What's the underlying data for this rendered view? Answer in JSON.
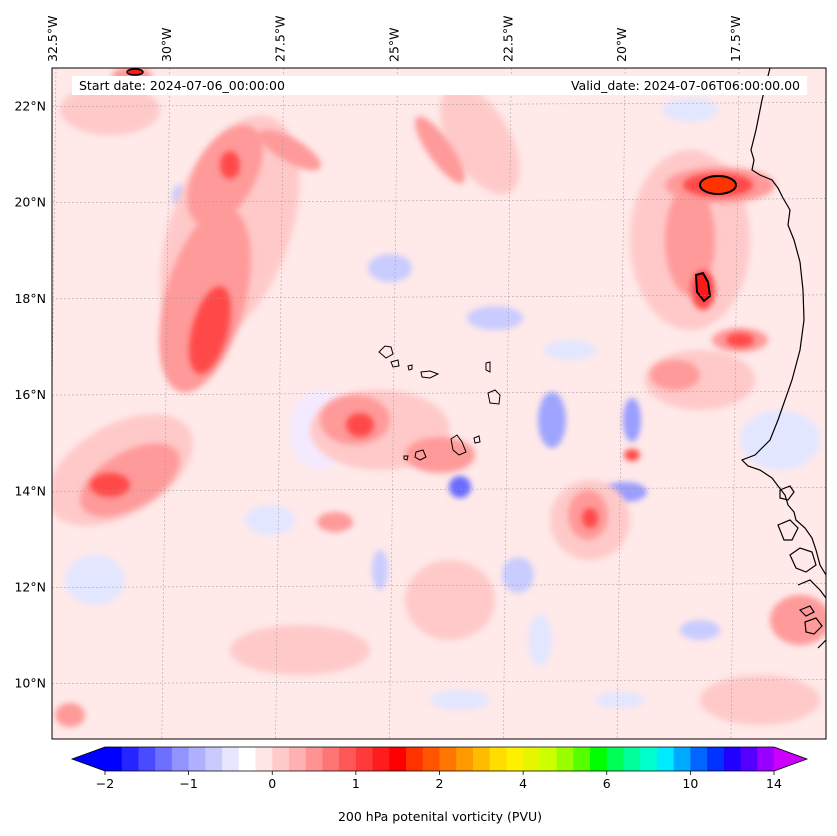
{
  "map": {
    "start_date": "Start date: 2024-07-06_00:00:00",
    "valid_date": "Valid_date: 2024-07-06T06:00:00.00",
    "extent": {
      "lon_min": -32.5,
      "lon_max": -15.5,
      "lat_min": 8.85,
      "lat_max": 22.8
    },
    "lon_labels": [
      {
        "lon": -32.5,
        "text": "32.5°W"
      },
      {
        "lon": -30.0,
        "text": "30°W"
      },
      {
        "lon": -27.5,
        "text": "27.5°W"
      },
      {
        "lon": -25.0,
        "text": "25°W"
      },
      {
        "lon": -22.5,
        "text": "22.5°W"
      },
      {
        "lon": -20.0,
        "text": "20°W"
      },
      {
        "lon": -17.5,
        "text": "17.5°W"
      }
    ],
    "lat_labels": [
      {
        "lat": 22,
        "text": "22°N"
      },
      {
        "lat": 20,
        "text": "20°N"
      },
      {
        "lat": 18,
        "text": "18°N"
      },
      {
        "lat": 16,
        "text": "16°N"
      },
      {
        "lat": 14,
        "text": "14°N"
      },
      {
        "lat": 12,
        "text": "12°N"
      },
      {
        "lat": 10,
        "text": "10°N"
      }
    ],
    "gridlines": true,
    "colors": {
      "light_red": "#ffd6d6",
      "medium_red": "#ff9a9a",
      "strong_red": "#ff4a4a",
      "deep_red": "#ff1a1a",
      "orange_red": "#ff3300",
      "light_blue": "#e3e6ff",
      "medium_blue": "#b3b8ff",
      "strong_blue": "#6a6cff",
      "coast": "#000000"
    }
  },
  "colorbar": {
    "label": "200 hPa potenital vorticity (PVU)",
    "ticks": [
      "−2",
      "−1",
      "0",
      "1",
      "2",
      "4",
      "6",
      "10",
      "14"
    ],
    "tick_bin_index": [
      0,
      5,
      10,
      15,
      20,
      25,
      30,
      35,
      40
    ],
    "colors": [
      "#0000ff",
      "#2525ff",
      "#4a4aff",
      "#6f6fff",
      "#9393ff",
      "#b0b0ff",
      "#cacaff",
      "#e6e6ff",
      "#ffffff",
      "#ffe6e6",
      "#ffcaca",
      "#ffb0b0",
      "#ff9393",
      "#ff7575",
      "#ff5656",
      "#ff3a3a",
      "#ff1c1c",
      "#ff0000",
      "#ff3300",
      "#ff5500",
      "#ff7700",
      "#ff9900",
      "#ffbb00",
      "#ffdd00",
      "#fff000",
      "#e6f500",
      "#ccff00",
      "#99ff00",
      "#55ff00",
      "#00ff00",
      "#00ff55",
      "#00ff99",
      "#00ffcc",
      "#00eaff",
      "#00aaff",
      "#0066ff",
      "#0033ff",
      "#2200ff",
      "#5500ff",
      "#9900ff"
    ],
    "under_color": "#0000ff",
    "over_color": "#cc00ff"
  }
}
